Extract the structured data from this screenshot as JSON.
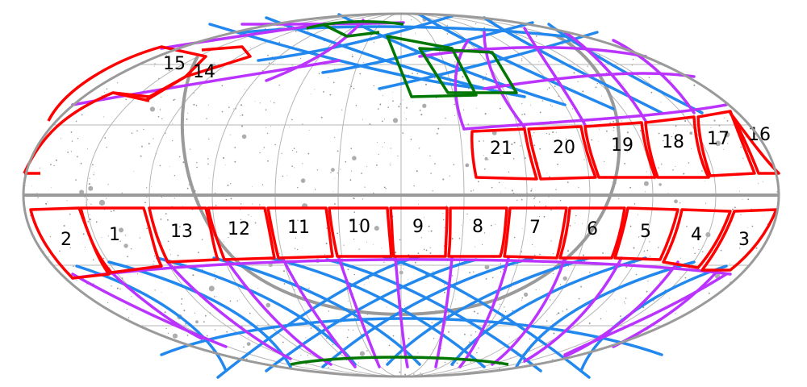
{
  "colors": {
    "background": "#ffffff",
    "grid": "#a0a0a0",
    "star": "#777777",
    "red": "#ff0000",
    "purple": "#bb33ff",
    "blue": "#2288ee",
    "green": "#007700",
    "label": "#000000"
  },
  "sectors": {
    "south": [
      "1",
      "2",
      "3",
      "4",
      "5",
      "6",
      "7",
      "8",
      "9",
      "10",
      "11",
      "12",
      "13"
    ],
    "north": [
      "14",
      "15",
      "16",
      "17",
      "18",
      "19",
      "20",
      "21"
    ]
  }
}
